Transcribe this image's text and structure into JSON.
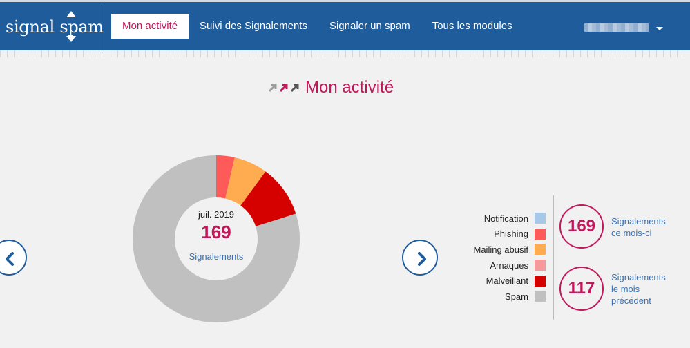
{
  "brand": {
    "logo_text": "signal spam",
    "color": "#1f5c9c",
    "accent": "#c2185b"
  },
  "nav": {
    "items": [
      {
        "label": "Mon activité",
        "active": true
      },
      {
        "label": "Suivi des Signalements",
        "active": false
      },
      {
        "label": "Signaler un spam",
        "active": false
      },
      {
        "label": "Tous les modules",
        "active": false
      }
    ]
  },
  "page": {
    "title": "Mon activité"
  },
  "chart_data": {
    "type": "pie",
    "donut": true,
    "center": {
      "month": "juil. 2019",
      "count": "169",
      "label": "Signalements"
    },
    "categories": [
      "Notification",
      "Phishing",
      "Mailing abusif",
      "Arnaques",
      "Malveillant",
      "Spam"
    ],
    "values": [
      0,
      6,
      11,
      0,
      17,
      135
    ],
    "colors": [
      "#a8c8e8",
      "#ff5a5a",
      "#ffab4f",
      "#f49a9a",
      "#d50000",
      "#c0c0c0"
    ]
  },
  "stats": {
    "current": {
      "value": "169",
      "line1": "Signalements",
      "line2": "ce mois-ci",
      "line3": ""
    },
    "previous": {
      "value": "117",
      "line1": "Signalements",
      "line2": "le mois",
      "line3": "précédent"
    }
  },
  "icons": {
    "prev": "chevron-left-icon",
    "next": "chevron-right-icon",
    "user_menu": "caret-down-icon"
  }
}
